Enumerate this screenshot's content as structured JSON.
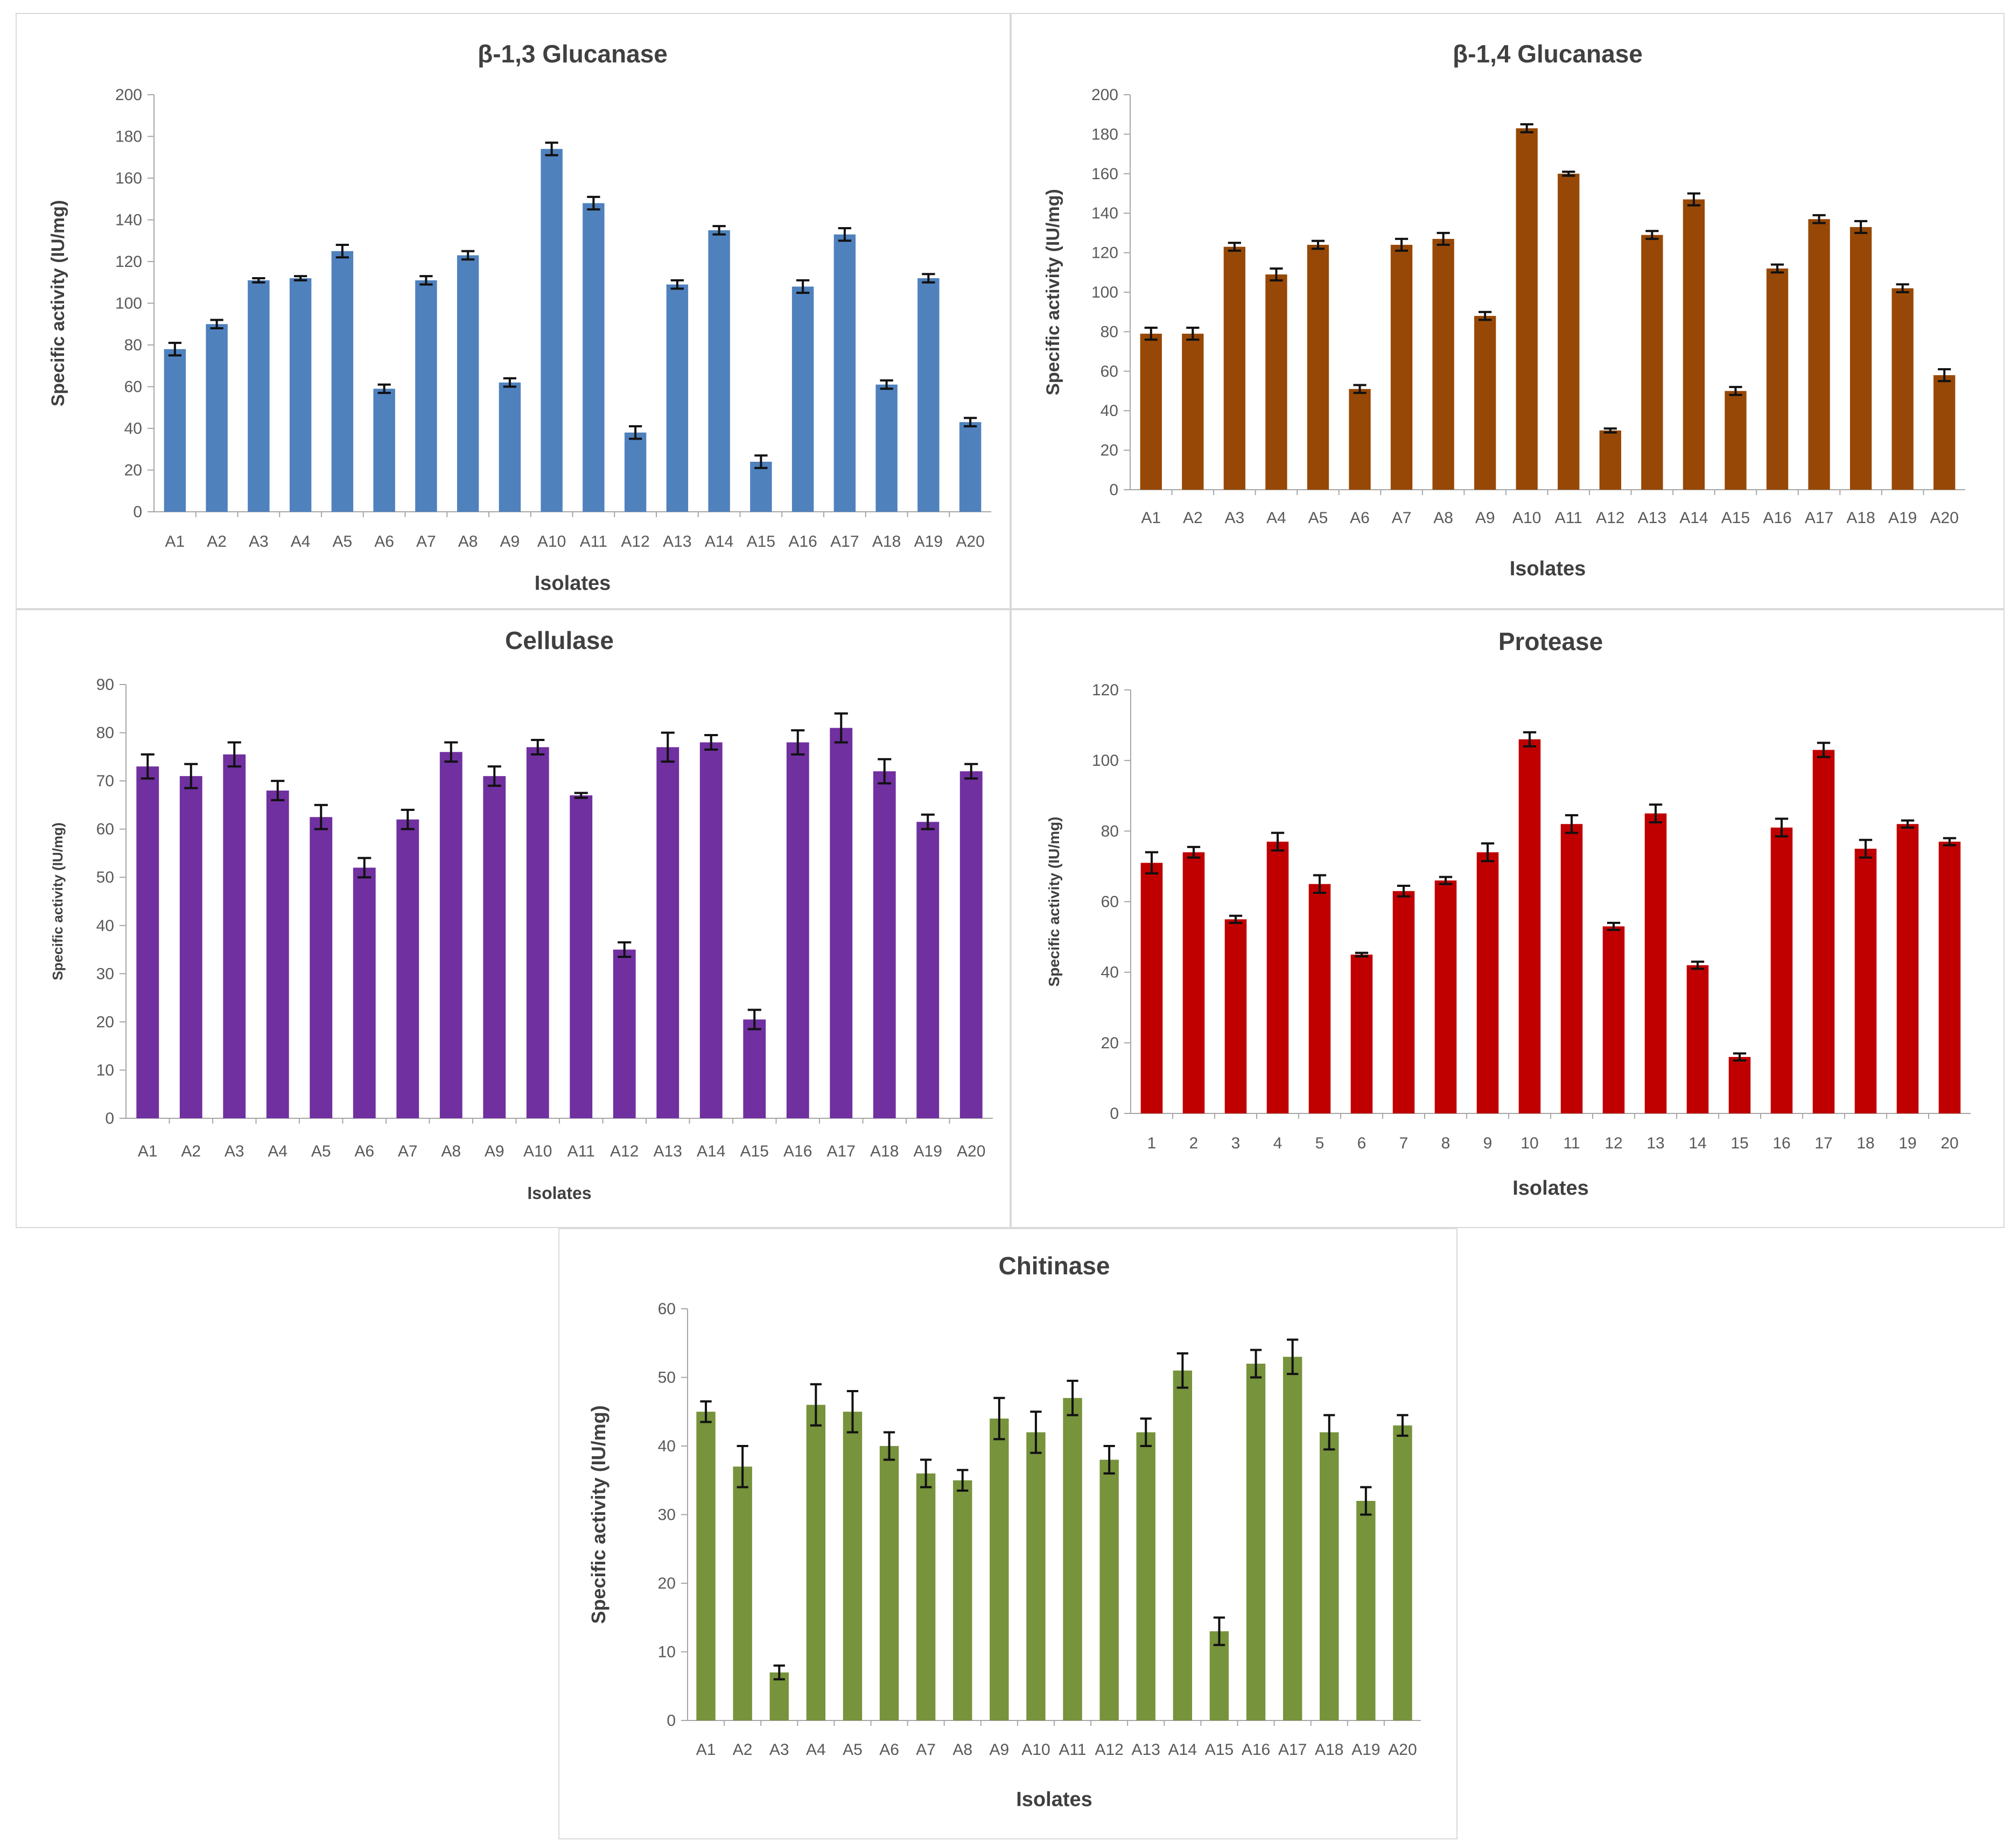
{
  "chart_data": [
    {
      "type": "bar",
      "title": "β-1,3 Glucanase",
      "xlabel": "Isolates",
      "ylabel": "Specific activity (IU/mg)",
      "ylim": [
        0,
        200
      ],
      "ystep": 20,
      "color": "#4f81bd",
      "categories": [
        "A1",
        "A2",
        "A3",
        "A4",
        "A5",
        "A6",
        "A7",
        "A8",
        "A9",
        "A10",
        "A11",
        "A12",
        "A13",
        "A14",
        "A15",
        "A16",
        "A17",
        "A18",
        "A19",
        "A20"
      ],
      "values": [
        78,
        90,
        111,
        112,
        125,
        59,
        111,
        123,
        62,
        174,
        148,
        38,
        109,
        135,
        24,
        108,
        133,
        61,
        112,
        43
      ],
      "errors": [
        3,
        2,
        1,
        1,
        3,
        2,
        2,
        2,
        2,
        3,
        3,
        3,
        2,
        2,
        3,
        3,
        3,
        2,
        2,
        2
      ]
    },
    {
      "type": "bar",
      "title": "β-1,4 Glucanase",
      "xlabel": "Isolates",
      "ylabel": "Specific activity (IU/mg)",
      "ylim": [
        0,
        200
      ],
      "ystep": 20,
      "color": "#974806",
      "categories": [
        "A1",
        "A2",
        "A3",
        "A4",
        "A5",
        "A6",
        "A7",
        "A8",
        "A9",
        "A10",
        "A11",
        "A12",
        "A13",
        "A14",
        "A15",
        "A16",
        "A17",
        "A18",
        "A19",
        "A20"
      ],
      "values": [
        79,
        79,
        123,
        109,
        124,
        51,
        124,
        127,
        88,
        183,
        160,
        30,
        129,
        147,
        50,
        112,
        137,
        133,
        102,
        58
      ],
      "errors": [
        3,
        3,
        2,
        3,
        2,
        2,
        3,
        3,
        2,
        2,
        1,
        1,
        2,
        3,
        2,
        2,
        2,
        3,
        2,
        3
      ]
    },
    {
      "type": "bar",
      "title": "Cellulase",
      "xlabel": "Isolates",
      "ylabel": "Specific activity (IU/mg)",
      "ylim": [
        0,
        90
      ],
      "ystep": 10,
      "color": "#7030a0",
      "categories": [
        "A1",
        "A2",
        "A3",
        "A4",
        "A5",
        "A6",
        "A7",
        "A8",
        "A9",
        "A10",
        "A11",
        "A12",
        "A13",
        "A14",
        "A15",
        "A16",
        "A17",
        "A18",
        "A19",
        "A20"
      ],
      "values": [
        73,
        71,
        75.5,
        68,
        62.5,
        52,
        62,
        76,
        71,
        77,
        67,
        35,
        77,
        78,
        20.5,
        78,
        81,
        72,
        61.5,
        72
      ],
      "errors": [
        2.5,
        2.5,
        2.5,
        2,
        2.5,
        2,
        2,
        2,
        2,
        1.5,
        0.5,
        1.5,
        3,
        1.5,
        2,
        2.5,
        3,
        2.5,
        1.5,
        1.5
      ]
    },
    {
      "type": "bar",
      "title": "Protease",
      "xlabel": "Isolates",
      "ylabel": "Specific activity (IU/mg)",
      "ylim": [
        0,
        120
      ],
      "ystep": 20,
      "color": "#c00000",
      "categories": [
        "1",
        "2",
        "3",
        "4",
        "5",
        "6",
        "7",
        "8",
        "9",
        "10",
        "11",
        "12",
        "13",
        "14",
        "15",
        "16",
        "17",
        "18",
        "19",
        "20"
      ],
      "values": [
        71,
        74,
        55,
        77,
        65,
        45,
        63,
        66,
        74,
        106,
        82,
        53,
        85,
        42,
        16,
        81,
        103,
        75,
        82,
        77
      ],
      "errors": [
        3,
        1.5,
        1,
        2.5,
        2.5,
        0.5,
        1.5,
        1,
        2.5,
        2,
        2.5,
        1,
        2.5,
        1,
        1,
        2.5,
        2,
        2.5,
        1,
        1
      ]
    },
    {
      "type": "bar",
      "title": "Chitinase",
      "xlabel": "Isolates",
      "ylabel": "Specific activity (IU/mg)",
      "ylim": [
        0,
        60
      ],
      "ystep": 10,
      "color": "#77933c",
      "categories": [
        "A1",
        "A2",
        "A3",
        "A4",
        "A5",
        "A6",
        "A7",
        "A8",
        "A9",
        "A10",
        "A11",
        "A12",
        "A13",
        "A14",
        "A15",
        "A16",
        "A17",
        "A18",
        "A19",
        "A20"
      ],
      "values": [
        45,
        37,
        7,
        46,
        45,
        40,
        36,
        35,
        44,
        42,
        47,
        38,
        42,
        51,
        13,
        52,
        53,
        42,
        32,
        43
      ],
      "errors": [
        1.5,
        3,
        1,
        3,
        3,
        2,
        2,
        1.5,
        3,
        3,
        2.5,
        2,
        2,
        2.5,
        2,
        2,
        2.5,
        2.5,
        2,
        1.5
      ]
    }
  ]
}
